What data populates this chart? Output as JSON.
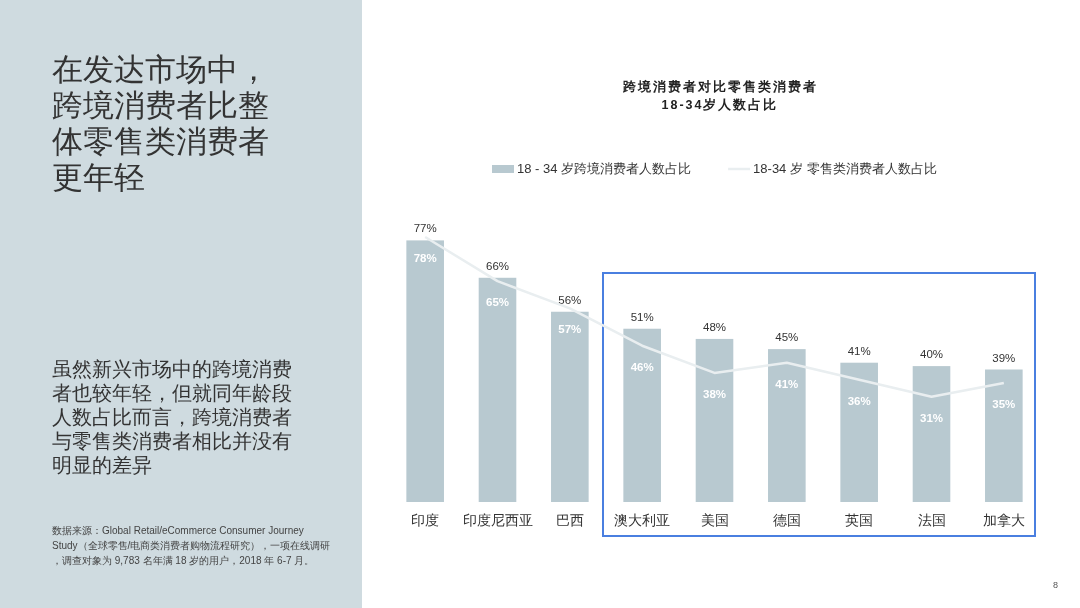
{
  "chart_data": {
    "type": "bar",
    "title": "跨境消费者对比零售类消费者\n18-34岁人数占比",
    "categories": [
      "印度",
      "印度尼西亚",
      "巴西",
      "澳大利亚",
      "美国",
      "德国",
      "英国",
      "法国",
      "加拿大"
    ],
    "series": [
      {
        "name": "18 - 34 岁跨境消费者人数占比",
        "color": "#b8c9d0",
        "values": [
          77,
          66,
          56,
          51,
          48,
          45,
          41,
          40,
          39
        ],
        "value_labels": [
          "77%",
          "66%",
          "56%",
          "51%",
          "48%",
          "45%",
          "41%",
          "40%",
          "39%"
        ]
      },
      {
        "name": "18-34 岁 零售类消费者人数占比",
        "type": "line",
        "color": "#e9eef0",
        "values": [
          78,
          65,
          57,
          46,
          38,
          41,
          36,
          31,
          35
        ],
        "value_labels": [
          "78%",
          "65%",
          "57%",
          "46%",
          "38%",
          "41%",
          "36%",
          "31%",
          "35%"
        ]
      }
    ],
    "legend": "top",
    "annotations": [
      "在发达市场中，跨境消费者比整体零售类消费者更年轻",
      "虽然新兴市场中的跨境消费者也较年轻，但就同年龄段人数占比而言，跨境消费者与零售类消费者相比并没有明显的差异",
      "数据来源：Global Retail/eCommerce Consumer Journey Study（全球零售/电商类消费者购物流程研究），一项在线调研，调查对象为 9,783 名年满 18 岁的用户，2018 年 6-7 月。",
      "8"
    ]
  }
}
